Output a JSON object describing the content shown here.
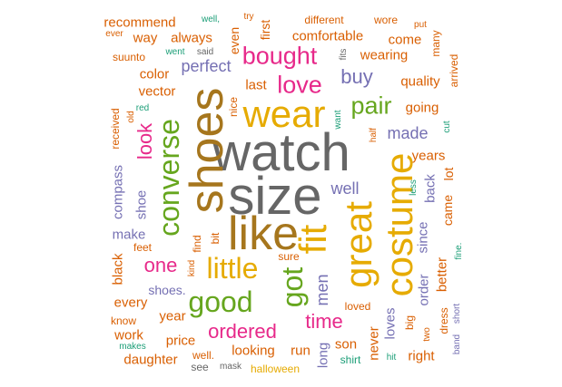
{
  "colors": {
    "gray": "#666666",
    "gold": "#a6761d",
    "orange": "#d95f02",
    "mustard": "#e6ab02",
    "pink": "#e7298a",
    "purple": "#7570b3",
    "green": "#66a61e",
    "teal": "#1b9e77"
  },
  "words": [
    {
      "id": "watch",
      "text": "watch"
    },
    {
      "id": "size",
      "text": "size"
    },
    {
      "id": "shoes",
      "text": "shoes"
    },
    {
      "id": "like",
      "text": "like"
    },
    {
      "id": "wear",
      "text": "wear"
    },
    {
      "id": "great",
      "text": "great"
    },
    {
      "id": "costume",
      "text": "costume"
    },
    {
      "id": "fit",
      "text": "fit"
    },
    {
      "id": "converse",
      "text": "converse"
    },
    {
      "id": "little",
      "text": "little"
    },
    {
      "id": "good",
      "text": "good"
    },
    {
      "id": "got",
      "text": "got"
    },
    {
      "id": "bought",
      "text": "bought"
    },
    {
      "id": "love",
      "text": "love"
    },
    {
      "id": "pair",
      "text": "pair"
    },
    {
      "id": "look",
      "text": "look"
    },
    {
      "id": "one",
      "text": "one"
    },
    {
      "id": "ordered",
      "text": "ordered"
    },
    {
      "id": "time",
      "text": "time"
    },
    {
      "id": "buy",
      "text": "buy"
    },
    {
      "id": "made",
      "text": "made"
    },
    {
      "id": "men",
      "text": "men"
    },
    {
      "id": "perfect",
      "text": "perfect"
    },
    {
      "id": "well",
      "text": "well"
    },
    {
      "id": "since",
      "text": "since"
    },
    {
      "id": "back",
      "text": "back"
    },
    {
      "id": "order",
      "text": "order"
    },
    {
      "id": "loves",
      "text": "loves"
    },
    {
      "id": "long",
      "text": "long"
    },
    {
      "id": "never",
      "text": "never"
    },
    {
      "id": "compass",
      "text": "compass"
    },
    {
      "id": "shoe",
      "text": "shoe"
    },
    {
      "id": "make",
      "text": "make"
    },
    {
      "id": "vector",
      "text": "vector"
    },
    {
      "id": "color",
      "text": "color"
    },
    {
      "id": "shoes-dot",
      "text": "shoes."
    },
    {
      "id": "always",
      "text": "always"
    },
    {
      "id": "way",
      "text": "way"
    },
    {
      "id": "recommend",
      "text": "recommend"
    },
    {
      "id": "comfortable",
      "text": "comfortable"
    },
    {
      "id": "wearing",
      "text": "wearing"
    },
    {
      "id": "come",
      "text": "come"
    },
    {
      "id": "quality",
      "text": "quality"
    },
    {
      "id": "going",
      "text": "going"
    },
    {
      "id": "years",
      "text": "years"
    },
    {
      "id": "last",
      "text": "last"
    },
    {
      "id": "first",
      "text": "first"
    },
    {
      "id": "even",
      "text": "even"
    },
    {
      "id": "suunto",
      "text": "suunto"
    },
    {
      "id": "different",
      "text": "different"
    },
    {
      "id": "wore",
      "text": "wore"
    },
    {
      "id": "many",
      "text": "many"
    },
    {
      "id": "arrived",
      "text": "arrived"
    },
    {
      "id": "received",
      "text": "received"
    },
    {
      "id": "nice",
      "text": "nice"
    },
    {
      "id": "year",
      "text": "year"
    },
    {
      "id": "price",
      "text": "price"
    },
    {
      "id": "looking",
      "text": "looking"
    },
    {
      "id": "run",
      "text": "run"
    },
    {
      "id": "son",
      "text": "son"
    },
    {
      "id": "daughter",
      "text": "daughter"
    },
    {
      "id": "work",
      "text": "work"
    },
    {
      "id": "every",
      "text": "every"
    },
    {
      "id": "black",
      "text": "black"
    },
    {
      "id": "feet",
      "text": "feet"
    },
    {
      "id": "find",
      "text": "find"
    },
    {
      "id": "bit",
      "text": "bit"
    },
    {
      "id": "right",
      "text": "right"
    },
    {
      "id": "big",
      "text": "big"
    },
    {
      "id": "dress",
      "text": "dress"
    },
    {
      "id": "better",
      "text": "better"
    },
    {
      "id": "came",
      "text": "came"
    },
    {
      "id": "lot",
      "text": "lot"
    },
    {
      "id": "halloween",
      "text": "halloween"
    },
    {
      "id": "see",
      "text": "see"
    },
    {
      "id": "mask",
      "text": "mask"
    },
    {
      "id": "shirt",
      "text": "shirt"
    },
    {
      "id": "hit",
      "text": "hit"
    },
    {
      "id": "well-dot",
      "text": "well."
    },
    {
      "id": "makes",
      "text": "makes"
    },
    {
      "id": "know",
      "text": "know"
    },
    {
      "id": "sure",
      "text": "sure"
    },
    {
      "id": "kind",
      "text": "kind"
    },
    {
      "id": "loved",
      "text": "loved"
    },
    {
      "id": "two",
      "text": "two"
    },
    {
      "id": "band",
      "text": "band"
    },
    {
      "id": "short",
      "text": "short"
    },
    {
      "id": "fine-dot",
      "text": "fine."
    },
    {
      "id": "less",
      "text": "less"
    },
    {
      "id": "half",
      "text": "half"
    },
    {
      "id": "want",
      "text": "want"
    },
    {
      "id": "cut",
      "text": "cut"
    },
    {
      "id": "put",
      "text": "put"
    },
    {
      "id": "try",
      "text": "try"
    },
    {
      "id": "well-comma",
      "text": "well,"
    },
    {
      "id": "ever",
      "text": "ever"
    },
    {
      "id": "went",
      "text": "went"
    },
    {
      "id": "said",
      "text": "said"
    },
    {
      "id": "old",
      "text": "old"
    },
    {
      "id": "red",
      "text": "red"
    },
    {
      "id": "fits",
      "text": "fits"
    }
  ]
}
